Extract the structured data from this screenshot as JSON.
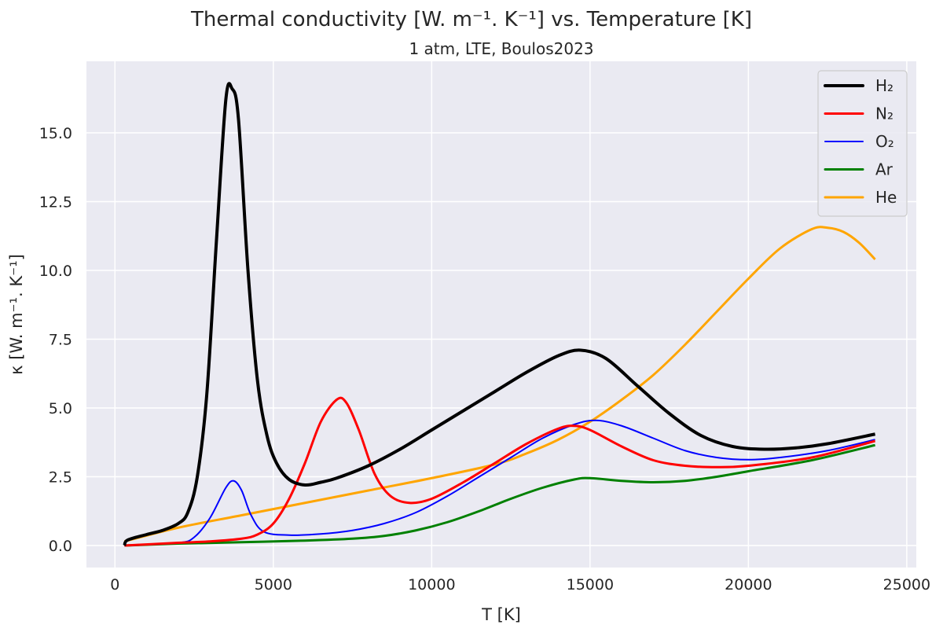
{
  "chart_data": {
    "type": "line",
    "title": "Thermal conductivity [W. m⁻¹. K⁻¹] vs. Temperature [K]",
    "subtitle": "1 atm, LTE, Boulos2023",
    "xlabel": "T [K]",
    "ylabel": "κ [W. m⁻¹. K⁻¹]",
    "xlim": [
      -900,
      25300
    ],
    "ylim": [
      -0.8,
      17.6
    ],
    "xticks": [
      0,
      5000,
      10000,
      15000,
      20000,
      25000
    ],
    "yticks": [
      0.0,
      2.5,
      5.0,
      7.5,
      10.0,
      12.5,
      15.0
    ],
    "xtick_labels": [
      "0",
      "5000",
      "10000",
      "15000",
      "20000",
      "25000"
    ],
    "ytick_labels": [
      "0.0",
      "2.5",
      "5.0",
      "7.5",
      "10.0",
      "12.5",
      "15.0"
    ],
    "grid": true,
    "legend_position": "top-right",
    "series": [
      {
        "name": "H₂",
        "color": "#000000",
        "width": 4,
        "x": [
          300,
          400,
          1000,
          1500,
          2000,
          2300,
          2600,
          2900,
          3200,
          3500,
          3700,
          3900,
          4200,
          4500,
          4800,
          5100,
          5500,
          6000,
          6500,
          7000,
          8000,
          9000,
          10000,
          11000,
          12000,
          13000,
          14000,
          14700,
          15500,
          16500,
          17500,
          18500,
          19500,
          20500,
          21500,
          22500,
          24000
        ],
        "y": [
          0.0,
          0.2,
          0.4,
          0.55,
          0.8,
          1.2,
          2.5,
          5.5,
          11.0,
          16.2,
          16.6,
          15.5,
          10.0,
          6.0,
          4.0,
          3.0,
          2.4,
          2.2,
          2.3,
          2.45,
          2.9,
          3.5,
          4.2,
          4.9,
          5.6,
          6.3,
          6.9,
          7.1,
          6.8,
          5.8,
          4.8,
          4.0,
          3.6,
          3.5,
          3.55,
          3.7,
          4.05
        ]
      },
      {
        "name": "N₂",
        "color": "#ff0000",
        "width": 3,
        "x": [
          300,
          2000,
          3000,
          4000,
          4500,
          5000,
          5500,
          6000,
          6500,
          7000,
          7300,
          7700,
          8200,
          8700,
          9300,
          10000,
          11000,
          12000,
          13000,
          14000,
          14500,
          15000,
          16000,
          17000,
          18000,
          19000,
          20000,
          22000,
          24000
        ],
        "y": [
          0.0,
          0.1,
          0.15,
          0.25,
          0.4,
          0.8,
          1.7,
          3.0,
          4.5,
          5.3,
          5.2,
          4.2,
          2.6,
          1.8,
          1.55,
          1.7,
          2.3,
          3.0,
          3.7,
          4.25,
          4.35,
          4.2,
          3.6,
          3.1,
          2.9,
          2.85,
          2.9,
          3.2,
          3.8
        ]
      },
      {
        "name": "O₂",
        "color": "#0000ff",
        "width": 2,
        "x": [
          300,
          2000,
          2500,
          3000,
          3500,
          3750,
          4000,
          4300,
          4700,
          5500,
          6500,
          7500,
          8500,
          9500,
          10500,
          11500,
          12500,
          13500,
          14500,
          15200,
          16000,
          17000,
          18000,
          19000,
          20000,
          21000,
          22500,
          24000
        ],
        "y": [
          0.0,
          0.1,
          0.3,
          1.0,
          2.1,
          2.35,
          2.0,
          1.1,
          0.5,
          0.38,
          0.42,
          0.55,
          0.8,
          1.2,
          1.8,
          2.5,
          3.2,
          3.9,
          4.4,
          4.55,
          4.35,
          3.9,
          3.45,
          3.2,
          3.12,
          3.2,
          3.45,
          3.85
        ]
      },
      {
        "name": "Ar",
        "color": "#008000",
        "width": 3,
        "x": [
          300,
          2000,
          4000,
          6000,
          7500,
          8500,
          9500,
          10500,
          11500,
          12500,
          13500,
          14500,
          15000,
          16000,
          17000,
          18000,
          19000,
          20000,
          22000,
          24000
        ],
        "y": [
          0.0,
          0.07,
          0.12,
          0.18,
          0.25,
          0.35,
          0.55,
          0.85,
          1.25,
          1.7,
          2.1,
          2.4,
          2.45,
          2.35,
          2.3,
          2.35,
          2.5,
          2.7,
          3.1,
          3.65
        ]
      },
      {
        "name": "He",
        "color": "#ffa500",
        "width": 3,
        "x": [
          300,
          2000,
          4000,
          6000,
          8000,
          10000,
          12000,
          13000,
          14000,
          15000,
          16000,
          17000,
          18000,
          19000,
          20000,
          21000,
          22000,
          22500,
          23000,
          23500,
          24000
        ],
        "y": [
          0.15,
          0.65,
          1.1,
          1.55,
          2.0,
          2.45,
          2.95,
          3.35,
          3.85,
          4.5,
          5.3,
          6.2,
          7.3,
          8.5,
          9.7,
          10.8,
          11.5,
          11.55,
          11.4,
          11.0,
          10.4
        ]
      }
    ]
  }
}
